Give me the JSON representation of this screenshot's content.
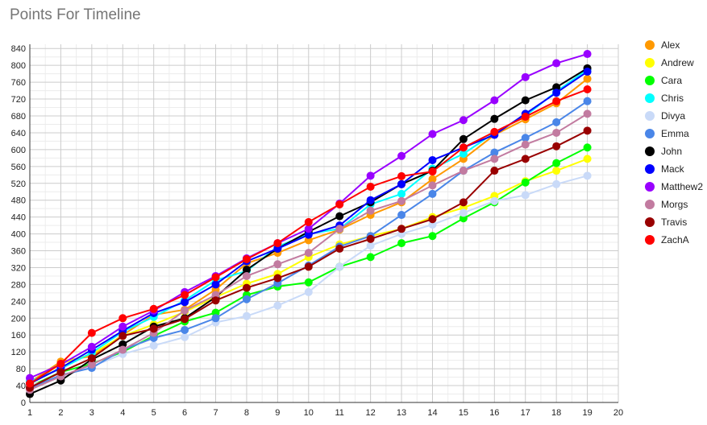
{
  "chart_data": {
    "type": "line",
    "title": "Points For Timeline",
    "xlabel": "",
    "ylabel": "",
    "x": [
      1,
      2,
      3,
      4,
      5,
      6,
      7,
      8,
      9,
      10,
      11,
      12,
      13,
      14,
      15,
      16,
      17,
      18,
      19
    ],
    "xlim": [
      1,
      20
    ],
    "xticks": [
      1,
      2,
      3,
      4,
      5,
      6,
      7,
      8,
      9,
      10,
      11,
      12,
      13,
      14,
      15,
      16,
      17,
      18,
      19,
      20
    ],
    "ylim": [
      0,
      850
    ],
    "yticks": [
      0,
      40,
      80,
      120,
      160,
      200,
      240,
      280,
      320,
      360,
      400,
      440,
      480,
      520,
      560,
      600,
      640,
      680,
      720,
      760,
      800,
      840
    ],
    "grid": true,
    "legend": "right",
    "series": [
      {
        "name": "Alex",
        "color": "#ff9900",
        "values": [
          48,
          97,
          110,
          160,
          208,
          220,
          268,
          330,
          355,
          385,
          410,
          445,
          475,
          530,
          578,
          635,
          672,
          710,
          768
        ]
      },
      {
        "name": "Andrew",
        "color": "#ffff00",
        "values": [
          42,
          92,
          115,
          158,
          185,
          215,
          250,
          282,
          305,
          345,
          375,
          395,
          412,
          440,
          462,
          490,
          525,
          550,
          578
        ]
      },
      {
        "name": "Cara",
        "color": "#00ff00",
        "values": [
          38,
          72,
          92,
          120,
          158,
          192,
          213,
          255,
          275,
          285,
          322,
          345,
          378,
          395,
          437,
          475,
          522,
          568,
          605
        ]
      },
      {
        "name": "Chris",
        "color": "#00ffff",
        "values": [
          50,
          80,
          118,
          168,
          203,
          242,
          290,
          312,
          370,
          400,
          412,
          470,
          495,
          555,
          590,
          640,
          680,
          738,
          790
        ]
      },
      {
        "name": "Divya",
        "color": "#c9daf8",
        "values": [
          40,
          62,
          85,
          115,
          135,
          155,
          190,
          205,
          230,
          262,
          322,
          372,
          400,
          422,
          450,
          478,
          492,
          518,
          538
        ]
      },
      {
        "name": "Emma",
        "color": "#4a86e8",
        "values": [
          33,
          65,
          82,
          125,
          153,
          172,
          200,
          245,
          283,
          325,
          370,
          395,
          445,
          495,
          550,
          593,
          628,
          665,
          715
        ]
      },
      {
        "name": "John",
        "color": "#000000",
        "values": [
          20,
          52,
          102,
          138,
          180,
          200,
          250,
          315,
          365,
          405,
          442,
          475,
          518,
          550,
          625,
          673,
          717,
          748,
          793
        ]
      },
      {
        "name": "Mack",
        "color": "#0000ff",
        "values": [
          45,
          82,
          125,
          170,
          212,
          238,
          280,
          335,
          365,
          398,
          420,
          480,
          518,
          575,
          605,
          635,
          685,
          735,
          785
        ]
      },
      {
        "name": "Matthew2",
        "color": "#9900ff",
        "values": [
          58,
          90,
          132,
          180,
          218,
          262,
          300,
          342,
          378,
          412,
          472,
          538,
          585,
          637,
          670,
          717,
          772,
          805,
          827
        ]
      },
      {
        "name": "Morgs",
        "color": "#c27ba0",
        "values": [
          30,
          62,
          90,
          125,
          165,
          218,
          255,
          300,
          328,
          355,
          412,
          455,
          478,
          515,
          550,
          578,
          612,
          640,
          685
        ]
      },
      {
        "name": "Travis",
        "color": "#990000",
        "values": [
          35,
          72,
          105,
          158,
          175,
          198,
          242,
          272,
          295,
          322,
          365,
          388,
          412,
          435,
          475,
          550,
          578,
          608,
          645
        ]
      },
      {
        "name": "ZachA",
        "color": "#ff0000",
        "values": [
          45,
          92,
          165,
          200,
          222,
          255,
          297,
          340,
          378,
          428,
          470,
          512,
          537,
          548,
          605,
          642,
          678,
          715,
          743
        ]
      }
    ]
  }
}
